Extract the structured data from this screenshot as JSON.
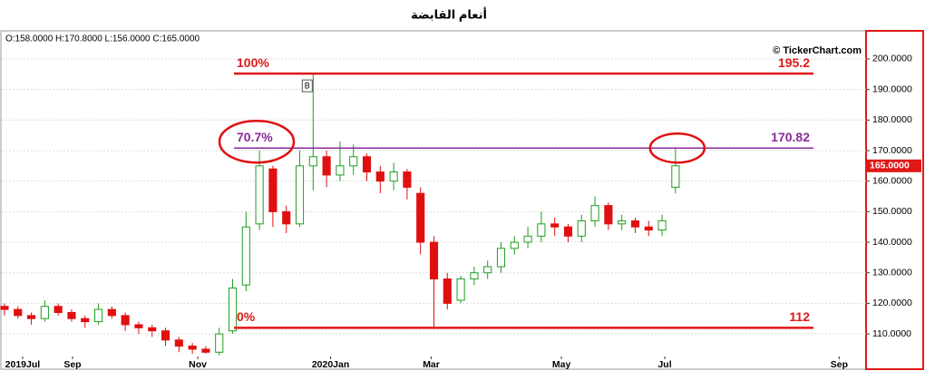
{
  "chart_data": {
    "type": "candlestick",
    "title": "أنعام القابضة",
    "ohlc_header": "O:158.0000 H:170.8000 L:156.0000 C:165.0000",
    "watermark": "© TickerChart.com",
    "marker": "B",
    "up_color": "#1f9e1f",
    "down_color": "#e01010",
    "open": [
      119,
      118,
      116,
      115,
      119,
      117,
      115,
      114,
      118,
      116,
      113,
      112,
      111,
      108,
      106,
      105,
      104,
      111,
      126,
      146,
      164,
      150,
      146,
      165,
      168,
      162,
      165,
      168,
      163,
      160,
      163,
      156,
      140,
      128,
      121,
      128,
      130,
      132,
      138,
      140,
      142,
      146,
      145,
      142,
      147,
      152,
      146,
      147,
      145,
      144,
      158
    ],
    "high": [
      120,
      119,
      117,
      121,
      120,
      118,
      116,
      120,
      119,
      117,
      114,
      113,
      112,
      109,
      107,
      106,
      112,
      128,
      150,
      170,
      165,
      152,
      170,
      195.2,
      170,
      173,
      172,
      169,
      165,
      166,
      164,
      158,
      142,
      130,
      129,
      132,
      134,
      140,
      142,
      145,
      150,
      148,
      146,
      149,
      155,
      153,
      149,
      148,
      147,
      149,
      170.8
    ],
    "low": [
      116,
      115,
      113,
      114,
      116,
      114,
      112,
      113,
      115,
      111,
      110,
      109,
      106,
      104,
      103.5,
      103.5,
      103,
      110,
      124,
      144,
      145,
      143,
      145,
      157,
      158,
      160,
      162,
      160,
      156,
      157,
      154,
      136,
      112,
      118,
      120,
      126,
      128,
      130,
      136,
      138,
      140,
      142,
      140,
      140,
      145,
      144,
      144,
      143,
      142,
      142,
      156
    ],
    "close": [
      118,
      116,
      115,
      119,
      117,
      115,
      114,
      118,
      116,
      113,
      112,
      111,
      108,
      106,
      105,
      104,
      110,
      125,
      145,
      165,
      150,
      146,
      165,
      168,
      162,
      165,
      168,
      163,
      160,
      163,
      158,
      140,
      128,
      120,
      128,
      130,
      132,
      138,
      140,
      142,
      146,
      145,
      142,
      147,
      152,
      146,
      147,
      145,
      144,
      147,
      165
    ],
    "xlim": [
      -0.2,
      64.2
    ],
    "xticks": [
      {
        "value": 1.35,
        "label": "2019Jul"
      },
      {
        "value": 5.07,
        "label": "Sep"
      },
      {
        "value": 14.4,
        "label": "Nov"
      },
      {
        "value": 24.3,
        "label": "2020Jan"
      },
      {
        "value": 31.8,
        "label": "Mar"
      },
      {
        "value": 41.5,
        "label": "May"
      },
      {
        "value": 49.2,
        "label": "Jul"
      },
      {
        "value": 62.2,
        "label": "Sep"
      }
    ],
    "ylim": [
      102.6,
      208.6
    ],
    "yticks": [
      {
        "value": 110,
        "label": "110.0000"
      },
      {
        "value": 120,
        "label": "120.0000"
      },
      {
        "value": 130,
        "label": "130.0000"
      },
      {
        "value": 140,
        "label": "140.0000"
      },
      {
        "value": 150,
        "label": "150.0000"
      },
      {
        "value": 160,
        "label": "160.0000"
      },
      {
        "value": 170,
        "label": "170.0000"
      },
      {
        "value": 180,
        "label": "180.0000"
      },
      {
        "value": 190,
        "label": "190.0000"
      },
      {
        "value": 200,
        "label": "200.0000"
      }
    ],
    "grid": true,
    "last_price": {
      "value": 165,
      "label": "165.0000"
    },
    "levels": [
      {
        "label": "100%",
        "value": 195.2,
        "color": "#e01818"
      },
      {
        "label": "70.7%",
        "value": 170.82,
        "color": "#8a2a9a"
      },
      {
        "label": "0%",
        "value": 112,
        "color": "#e01818"
      }
    ]
  }
}
